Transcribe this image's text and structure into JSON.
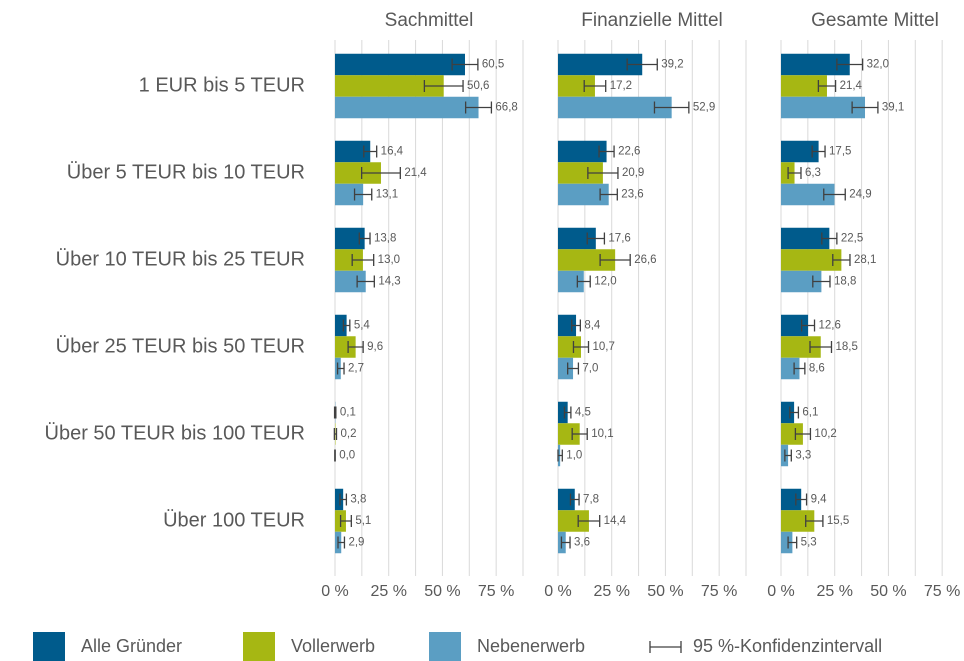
{
  "chart_data": {
    "type": "bar",
    "orientation": "horizontal",
    "categories": [
      "1 EUR bis 5 TEUR",
      "Über 5 TEUR bis 10 TEUR",
      "Über 10 TEUR bis 25 TEUR",
      "Über 25 TEUR bis 50 TEUR",
      "Über 50 TEUR bis 100 TEUR",
      "Über 100 TEUR"
    ],
    "series": [
      {
        "name": "Alle Gründer",
        "color": "#005b8c"
      },
      {
        "name": "Vollerwerb",
        "color": "#a6b713"
      },
      {
        "name": "Nebenerwerb",
        "color": "#5b9ec3"
      }
    ],
    "error_legend": "95 %-Konfidenzintervall",
    "xlim": [
      0,
      87.5
    ],
    "xticks": [
      {
        "value": 0,
        "label": "0 %"
      },
      {
        "value": 25,
        "label": "25 %"
      },
      {
        "value": 50,
        "label": "50 %"
      },
      {
        "value": 75,
        "label": "75 %"
      }
    ],
    "xminor_ticks": [
      12.5,
      37.5,
      62.5,
      87.5
    ],
    "grid": true,
    "legend": "bottom",
    "panels": [
      {
        "title": "Sachmittel",
        "series": [
          {
            "values": [
              60.5,
              16.4,
              13.8,
              5.4,
              0.1,
              3.8
            ],
            "value_labels": [
              "60,5",
              "16,4",
              "13,8",
              "5,4",
              "0,1",
              "3,8"
            ],
            "errors": [
              6,
              3,
              2.5,
              1.5,
              0.3,
              1.5
            ]
          },
          {
            "values": [
              50.6,
              21.4,
              13.0,
              9.6,
              0.2,
              5.1
            ],
            "value_labels": [
              "50,6",
              "21,4",
              "13,0",
              "9,6",
              "0,2",
              "5,1"
            ],
            "errors": [
              9,
              9,
              5,
              3.5,
              0.5,
              2.5
            ]
          },
          {
            "values": [
              66.8,
              13.1,
              14.3,
              2.7,
              0.0,
              2.9
            ],
            "value_labels": [
              "66,8",
              "13,1",
              "14,3",
              "2,7",
              "0,0",
              "2,9"
            ],
            "errors": [
              6,
              4,
              4,
              1.5,
              0.1,
              1.5
            ]
          }
        ]
      },
      {
        "title": "Finanzielle Mittel",
        "series": [
          {
            "values": [
              39.2,
              22.6,
              17.6,
              8.4,
              4.5,
              7.8
            ],
            "value_labels": [
              "39,2",
              "22,6",
              "17,6",
              "8,4",
              "4,5",
              "7,8"
            ],
            "errors": [
              7,
              3.5,
              4,
              2,
              1.5,
              2
            ]
          },
          {
            "values": [
              17.2,
              20.9,
              26.6,
              10.7,
              10.1,
              14.4
            ],
            "value_labels": [
              "17,2",
              "20,9",
              "26,6",
              "10,7",
              "10,1",
              "14,4"
            ],
            "errors": [
              5,
              7,
              7,
              3.5,
              3.5,
              5
            ]
          },
          {
            "values": [
              52.9,
              23.6,
              12.0,
              7.0,
              1.0,
              3.6
            ],
            "value_labels": [
              "52,9",
              "23,6",
              "12,0",
              "7,0",
              "1,0",
              "3,6"
            ],
            "errors": [
              8,
              4,
              3,
              2.5,
              1,
              2
            ]
          }
        ]
      },
      {
        "title": "Gesamte Mittel",
        "series": [
          {
            "values": [
              32.0,
              17.5,
              22.5,
              12.6,
              6.1,
              9.4
            ],
            "value_labels": [
              "32,0",
              "17,5",
              "22,5",
              "12,6",
              "6,1",
              "9,4"
            ],
            "errors": [
              6,
              3,
              3.5,
              3,
              2,
              2.5
            ]
          },
          {
            "values": [
              21.4,
              6.3,
              28.1,
              18.5,
              10.2,
              15.5
            ],
            "value_labels": [
              "21,4",
              "6,3",
              "28,1",
              "18,5",
              "10,2",
              "15,5"
            ],
            "errors": [
              4,
              3,
              4,
              5,
              3.5,
              4
            ]
          },
          {
            "values": [
              39.1,
              24.9,
              18.8,
              8.6,
              3.3,
              5.3
            ],
            "value_labels": [
              "39,1",
              "24,9",
              "18,8",
              "8,6",
              "3,3",
              "5,3"
            ],
            "errors": [
              6,
              5,
              4,
              2.5,
              1.5,
              2
            ]
          }
        ]
      }
    ]
  }
}
